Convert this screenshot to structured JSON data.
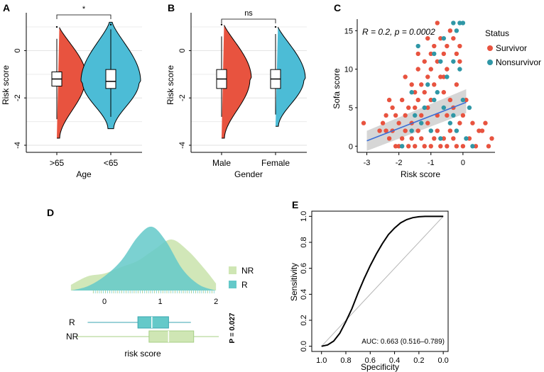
{
  "figure": {
    "panels": [
      "A",
      "B",
      "C",
      "D",
      "E"
    ]
  },
  "colors": {
    "red": "#e8533f",
    "blue": "#4cbcd6",
    "teal": "#2f97a6",
    "nr_green": "#cfe6b4",
    "r_teal": "#64c9c9",
    "fit_line": "#3b6fd6",
    "band": "#c8c8c8"
  },
  "chart_data": [
    {
      "id": "A",
      "type": "violin",
      "title": "",
      "xlabel": "Age",
      "ylabel": "Risk score",
      "categories": [
        ">65",
        "<65"
      ],
      "ylim": [
        -4.3,
        1.6
      ],
      "yticks": [
        "0",
        "-2",
        "-4"
      ],
      "ytick_values": [
        0,
        -2,
        -4
      ],
      "significance": "*",
      "groups": [
        {
          "name": ">65",
          "color": "red",
          "min": -2.9,
          "q1": -1.5,
          "median": -1.2,
          "q3": -0.9,
          "max": 0.5,
          "data_min": -3.7,
          "data_max": 1.1
        },
        {
          "name": "<65",
          "color": "blue",
          "min": -2.8,
          "q1": -1.6,
          "median": -1.3,
          "q3": -0.8,
          "max": 0.9,
          "data_min": -3.3,
          "data_max": 1.2
        }
      ]
    },
    {
      "id": "B",
      "type": "violin",
      "title": "",
      "xlabel": "Gender",
      "ylabel": "Risk score",
      "categories": [
        "Male",
        "Female"
      ],
      "ylim": [
        -4.3,
        1.6
      ],
      "yticks": [
        "0",
        "-2",
        "-4"
      ],
      "ytick_values": [
        0,
        -2,
        -4
      ],
      "significance": "ns",
      "groups": [
        {
          "name": "Male",
          "color": "red",
          "min": -2.8,
          "q1": -1.6,
          "median": -1.2,
          "q3": -0.8,
          "max": 0.6,
          "data_min": -3.7,
          "data_max": 1.2
        },
        {
          "name": "Female",
          "color": "blue",
          "min": -2.7,
          "q1": -1.6,
          "median": -1.2,
          "q3": -0.8,
          "max": 0.7,
          "data_min": -3.2,
          "data_max": 1.1
        }
      ]
    },
    {
      "id": "C",
      "type": "scatter",
      "title": "",
      "xlabel": "Risk score",
      "ylabel": "Sofa score",
      "xlim": [
        -3.3,
        1.0
      ],
      "ylim": [
        -0.8,
        16.5
      ],
      "xticks": [
        "-3",
        "-2",
        "-1",
        "0"
      ],
      "xtick_values": [
        -3,
        -2,
        -1,
        0
      ],
      "yticks": [
        "0",
        "5",
        "10",
        "15"
      ],
      "ytick_values": [
        0,
        5,
        10,
        15
      ],
      "annotation": "R = 0.2, p = 0.0002",
      "legend_title": "Status",
      "legend": [
        {
          "label": "Survivor",
          "color": "red"
        },
        {
          "label": "Nonsurvivor",
          "color": "teal"
        }
      ],
      "fit": {
        "x": [
          -3.0,
          0.1
        ],
        "y": [
          0.7,
          5.7
        ],
        "band_lower": [
          -0.6,
          4.3
        ],
        "band_upper": [
          2.0,
          7.4
        ]
      },
      "series": [
        {
          "name": "Survivor",
          "points": [
            [
              -3.1,
              3
            ],
            [
              -2.4,
              2
            ],
            [
              -2.3,
              1
            ],
            [
              -2.2,
              2
            ],
            [
              -2.1,
              0
            ],
            [
              -2.0,
              0
            ],
            [
              -1.9,
              1
            ],
            [
              -1.8,
              2
            ],
            [
              -1.7,
              0
            ],
            [
              -1.6,
              1
            ],
            [
              -1.5,
              0
            ],
            [
              -1.4,
              2
            ],
            [
              -1.3,
              1
            ],
            [
              -1.2,
              0
            ],
            [
              -1.1,
              3
            ],
            [
              -1.0,
              0
            ],
            [
              -0.9,
              1
            ],
            [
              -0.8,
              2
            ],
            [
              -0.7,
              0
            ],
            [
              -0.6,
              1
            ],
            [
              -0.5,
              0
            ],
            [
              -0.4,
              2
            ],
            [
              -0.3,
              1
            ],
            [
              -0.2,
              0
            ],
            [
              -0.1,
              3
            ],
            [
              0.0,
              0
            ],
            [
              0.2,
              1
            ],
            [
              0.4,
              0
            ],
            [
              0.5,
              2
            ],
            [
              0.8,
              0
            ],
            [
              0.9,
              1
            ],
            [
              -2.0,
              3
            ],
            [
              -1.8,
              4
            ],
            [
              -1.6,
              3
            ],
            [
              -1.5,
              5
            ],
            [
              -1.4,
              6
            ],
            [
              -1.3,
              4
            ],
            [
              -1.2,
              7
            ],
            [
              -1.1,
              5
            ],
            [
              -1.0,
              6
            ],
            [
              -0.9,
              8
            ],
            [
              -0.8,
              4
            ],
            [
              -0.7,
              9
            ],
            [
              -0.6,
              7
            ],
            [
              -0.5,
              10
            ],
            [
              -0.4,
              6
            ],
            [
              -0.3,
              5
            ],
            [
              -0.2,
              8
            ],
            [
              -0.1,
              11
            ],
            [
              0.0,
              4
            ],
            [
              0.1,
              6
            ],
            [
              -1.7,
              5
            ],
            [
              -1.5,
              7
            ],
            [
              -1.3,
              8
            ],
            [
              -1.1,
              9
            ],
            [
              -1.0,
              10
            ],
            [
              -0.8,
              11
            ],
            [
              -0.6,
              12
            ],
            [
              -0.5,
              13
            ],
            [
              -0.3,
              14
            ],
            [
              -0.4,
              15
            ],
            [
              -0.7,
              14
            ],
            [
              -0.2,
              12
            ],
            [
              -1.2,
              11
            ],
            [
              -0.9,
              13
            ],
            [
              -0.6,
              9
            ],
            [
              -1.4,
              10
            ],
            [
              -1.6,
              8
            ],
            [
              -1.9,
              6
            ],
            [
              -2.1,
              4
            ],
            [
              -2.2,
              5
            ],
            [
              -2.5,
              3
            ],
            [
              -2.3,
              6
            ],
            [
              -1.8,
              9
            ],
            [
              -1.1,
              14
            ],
            [
              -0.8,
              16
            ],
            [
              -0.1,
              13
            ],
            [
              0.3,
              3
            ],
            [
              0.6,
              2
            ],
            [
              0.7,
              3
            ],
            [
              -2.6,
              2
            ],
            [
              -2.4,
              4
            ],
            [
              -1.4,
              12
            ],
            [
              -1.0,
              12
            ],
            [
              -0.5,
              4
            ]
          ]
        },
        {
          "name": "Nonsurvivor",
          "points": [
            [
              -1.9,
              0
            ],
            [
              -1.6,
              2
            ],
            [
              -1.3,
              3
            ],
            [
              -1.0,
              2
            ],
            [
              -0.7,
              1
            ],
            [
              -0.4,
              3
            ],
            [
              -0.2,
              2
            ],
            [
              0.1,
              1
            ],
            [
              -1.5,
              4
            ],
            [
              -1.2,
              5
            ],
            [
              -0.9,
              6
            ],
            [
              -0.6,
              5
            ],
            [
              -0.3,
              4
            ],
            [
              0.0,
              6
            ],
            [
              -1.1,
              8
            ],
            [
              -0.8,
              7
            ],
            [
              -0.5,
              9
            ],
            [
              -0.3,
              11
            ],
            [
              -0.1,
              10
            ],
            [
              -0.2,
              15
            ],
            [
              -0.1,
              16
            ],
            [
              0.0,
              16
            ],
            [
              -0.3,
              16
            ],
            [
              -0.7,
              11
            ],
            [
              -1.4,
              13
            ],
            [
              -0.9,
              12
            ],
            [
              -0.6,
              14
            ],
            [
              -1.6,
              7
            ],
            [
              0.3,
              0
            ],
            [
              0.2,
              5
            ]
          ]
        }
      ]
    },
    {
      "id": "D",
      "type": "density",
      "title": "",
      "xlabel": "risk score",
      "ylabel": "",
      "xlim": [
        -0.7,
        2.1
      ],
      "xticks": [
        "0",
        "1",
        "2"
      ],
      "xtick_values": [
        0,
        1,
        2
      ],
      "legend": [
        {
          "label": "NR",
          "color": "nr_green"
        },
        {
          "label": "R",
          "color": "r_teal"
        }
      ],
      "series": [
        {
          "name": "NR",
          "x": [
            -0.6,
            -0.3,
            0.0,
            0.3,
            0.6,
            0.9,
            1.2,
            1.5,
            1.8,
            2.0
          ],
          "density": [
            0.08,
            0.2,
            0.24,
            0.33,
            0.42,
            0.58,
            0.72,
            0.56,
            0.3,
            0.1
          ]
        },
        {
          "name": "R",
          "x": [
            -0.6,
            -0.3,
            0.0,
            0.3,
            0.6,
            0.85,
            1.1,
            1.4,
            1.7,
            2.0
          ],
          "density": [
            0.0,
            0.06,
            0.2,
            0.42,
            0.76,
            0.9,
            0.7,
            0.3,
            0.08,
            0.0
          ]
        }
      ],
      "boxplots": [
        {
          "name": "R",
          "min": -0.3,
          "q1": 0.6,
          "median": 0.85,
          "q3": 1.15,
          "max": 1.55
        },
        {
          "name": "NR",
          "min": -0.5,
          "q1": 0.8,
          "median": 1.15,
          "q3": 1.6,
          "max": 2.05
        }
      ],
      "p_value": "P = 0.027"
    },
    {
      "id": "E",
      "type": "roc",
      "title": "",
      "xlabel": "Specificity",
      "ylabel": "Sensitivity",
      "xlim": [
        1.08,
        -0.04
      ],
      "ylim": [
        -0.04,
        1.04
      ],
      "xticks": [
        "1.0",
        "0.8",
        "0.6",
        "0.4",
        "0.2",
        "0.0"
      ],
      "xtick_values": [
        1.0,
        0.8,
        0.6,
        0.4,
        0.2,
        0.0
      ],
      "yticks": [
        "0.0",
        "0.2",
        "0.4",
        "0.6",
        "0.8",
        "1.0"
      ],
      "ytick_values": [
        0.0,
        0.2,
        0.4,
        0.6,
        0.8,
        1.0
      ],
      "auc_label": "AUC: 0.663 (0.516–0.789)",
      "curve": {
        "specificity": [
          1.0,
          0.95,
          0.9,
          0.85,
          0.8,
          0.75,
          0.7,
          0.65,
          0.6,
          0.55,
          0.5,
          0.45,
          0.4,
          0.35,
          0.3,
          0.25,
          0.2,
          0.15,
          0.1,
          0.05,
          0.0
        ],
        "sensitivity": [
          0.0,
          0.01,
          0.04,
          0.1,
          0.19,
          0.29,
          0.41,
          0.52,
          0.62,
          0.71,
          0.79,
          0.86,
          0.91,
          0.95,
          0.975,
          0.99,
          0.997,
          1.0,
          1.0,
          1.0,
          1.0
        ]
      }
    }
  ]
}
